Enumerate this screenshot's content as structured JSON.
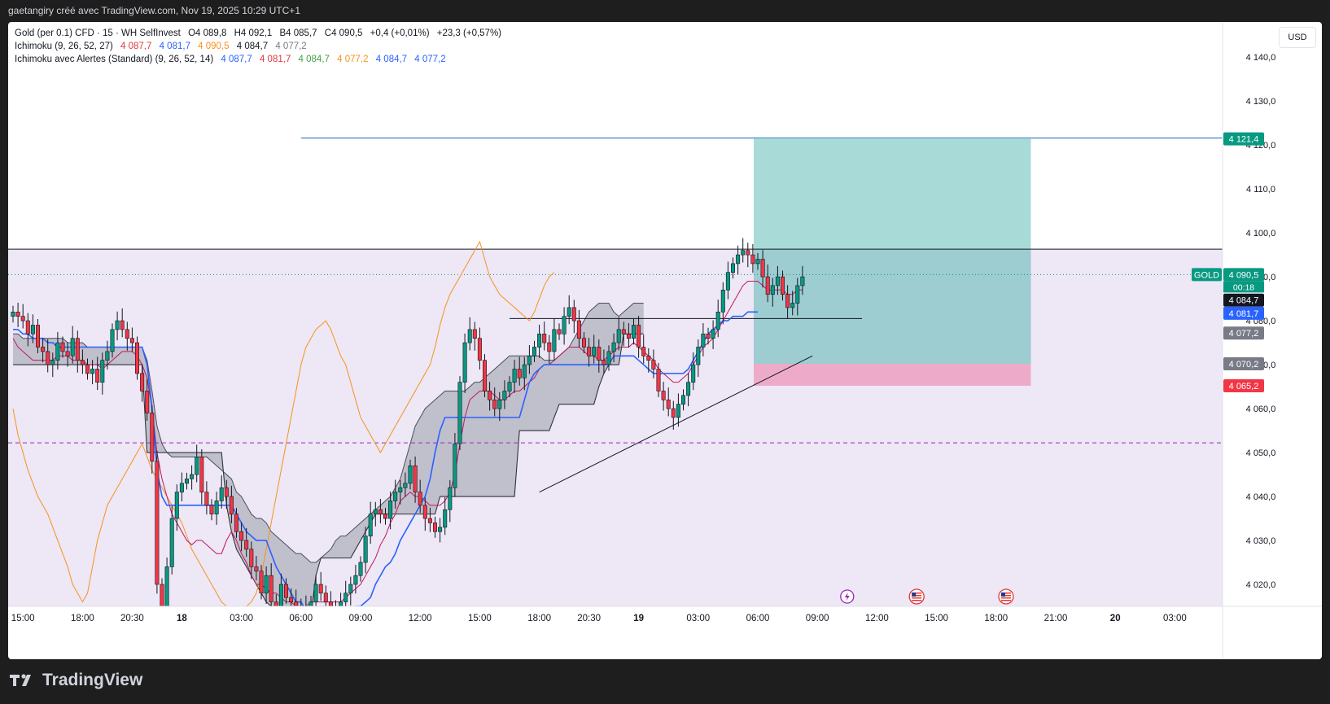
{
  "header": {
    "attribution": "gaetangiry créé avec TradingView.com, Nov 19, 2025 10:29 UTC+1"
  },
  "legend": {
    "symbol": "Gold (per 0.1) CFD · 15 · WH SelfInvest",
    "ohlc": [
      {
        "label": "O",
        "value": "4 089,8"
      },
      {
        "label": "H",
        "value": "4 092,1"
      },
      {
        "label": "B",
        "value": "4 085,7"
      },
      {
        "label": "C",
        "value": "4 090,5"
      }
    ],
    "change": "+0,4 (+0,01%)",
    "change2": "+23,3 (+0,57%)",
    "ichimoku1": {
      "name": "Ichimoku (9, 26, 52, 27)",
      "values": [
        {
          "v": "4 087,7",
          "color": "#e03a3e"
        },
        {
          "v": "4 081,7",
          "color": "#2962ff"
        },
        {
          "v": "4 090,5",
          "color": "#f7931a"
        },
        {
          "v": "4 084,7",
          "color": "#131722"
        },
        {
          "v": "4 077,2",
          "color": "#787b86"
        }
      ]
    },
    "ichimoku2": {
      "name": "Ichimoku avec Alertes (Standard) (9, 26, 52, 14)",
      "values": [
        {
          "v": "4 087,7",
          "color": "#2962ff"
        },
        {
          "v": "4 081,7",
          "color": "#e03a3e"
        },
        {
          "v": "4 084,7",
          "color": "#43a047"
        },
        {
          "v": "4 077,2",
          "color": "#f7931a"
        },
        {
          "v": "4 084,7",
          "color": "#2962ff"
        },
        {
          "v": "4 077,2",
          "color": "#2962ff"
        }
      ]
    }
  },
  "currency": "USD",
  "symbol_tag": "GOLD",
  "countdown": "00:18",
  "brand": "TradingView",
  "colors": {
    "bull": "#089981",
    "bear": "#f23645",
    "tenkan": "#c2185b",
    "kijun": "#2962ff",
    "chikou": "#f7931a",
    "cloud": "#8a8f98",
    "target": "#26a69a",
    "stop": "#f06292",
    "background_shade": "#ede7f6"
  },
  "chart_data": {
    "type": "candlestick",
    "ylim": [
      4015,
      4148
    ],
    "y_ticks": [
      "4 020,0",
      "4 030,0",
      "4 040,0",
      "4 050,0",
      "4 060,0",
      "4 070,0",
      "4 080,0",
      "4 090,0",
      "4 100,0",
      "4 110,0",
      "4 120,0",
      "4 130,0",
      "4 140,0"
    ],
    "y_tick_values": [
      4020,
      4030,
      4040,
      4050,
      4060,
      4070,
      4080,
      4090,
      4100,
      4110,
      4120,
      4130,
      4140
    ],
    "x_ticks": [
      {
        "label": "15:00",
        "bar": 2,
        "bold": false
      },
      {
        "label": "18:00",
        "bar": 14,
        "bold": false
      },
      {
        "label": "20:30",
        "bar": 24,
        "bold": false
      },
      {
        "label": "18",
        "bar": 34,
        "bold": true
      },
      {
        "label": "03:00",
        "bar": 46,
        "bold": false
      },
      {
        "label": "06:00",
        "bar": 58,
        "bold": false
      },
      {
        "label": "09:00",
        "bar": 70,
        "bold": false
      },
      {
        "label": "12:00",
        "bar": 82,
        "bold": false
      },
      {
        "label": "15:00",
        "bar": 94,
        "bold": false
      },
      {
        "label": "18:00",
        "bar": 106,
        "bold": false
      },
      {
        "label": "20:30",
        "bar": 116,
        "bold": false
      },
      {
        "label": "19",
        "bar": 126,
        "bold": true
      },
      {
        "label": "03:00",
        "bar": 138,
        "bold": false
      },
      {
        "label": "06:00",
        "bar": 150,
        "bold": false
      },
      {
        "label": "09:00",
        "bar": 162,
        "bold": false
      },
      {
        "label": "12:00",
        "bar": 174,
        "bold": false
      },
      {
        "label": "15:00",
        "bar": 186,
        "bold": false
      },
      {
        "label": "18:00",
        "bar": 198,
        "bold": false
      },
      {
        "label": "21:00",
        "bar": 210,
        "bold": false
      },
      {
        "label": "20",
        "bar": 222,
        "bold": true
      },
      {
        "label": "03:00",
        "bar": 234,
        "bold": false
      }
    ],
    "closes": [
      4082,
      4081,
      4080,
      4077,
      4079,
      4074,
      4073,
      4070,
      4071,
      4075,
      4073,
      4072,
      4076,
      4071,
      4070,
      4068,
      4069,
      4066,
      4071,
      4073,
      4078,
      4080,
      4078,
      4076,
      4075,
      4068,
      4064,
      4059,
      4048,
      4020,
      4015,
      4024,
      4035,
      4041,
      4043,
      4044,
      4045,
      4049,
      4041,
      4038,
      4036,
      4039,
      4042,
      4040,
      4036,
      4032,
      4030,
      4028,
      4024,
      4023,
      4018,
      4022,
      4016,
      4015,
      4020,
      4017,
      4016,
      4015,
      4014,
      4015,
      4016,
      4020,
      4018,
      4016,
      4014,
      4015,
      4016,
      4018,
      4020,
      4022,
      4025,
      4031,
      4036,
      4037,
      4036,
      4035,
      4039,
      4041,
      4042,
      4043,
      4047,
      4041,
      4038,
      4035,
      4034,
      4032,
      4033,
      4037,
      4042,
      4052,
      4066,
      4075,
      4078,
      4076,
      4071,
      4064,
      4062,
      4060,
      4062,
      4064,
      4066,
      4069,
      4067,
      4070,
      4072,
      4074,
      4077,
      4075,
      4073,
      4078,
      4077,
      4081,
      4083,
      4080,
      4076,
      4074,
      4072,
      4074,
      4071,
      4070,
      4073,
      4075,
      4078,
      4077,
      4076,
      4079,
      4074,
      4072,
      4071,
      4069,
      4064,
      4062,
      4060,
      4058,
      4061,
      4063,
      4066,
      4070,
      4074,
      4077,
      4076,
      4078,
      4082,
      4087,
      4091,
      4093,
      4095,
      4096,
      4095,
      4093,
      4094,
      4090,
      4086,
      4088,
      4090,
      4086,
      4083,
      4084,
      4088,
      4090
    ],
    "opens_offset_note": "",
    "tenkan": [
      4076,
      4074,
      4073,
      4072,
      4071,
      4071,
      4071,
      4071,
      4071,
      4072,
      4072,
      4072,
      4071,
      4071,
      4071,
      4070,
      4070,
      4070,
      4069,
      4070,
      4071,
      4072,
      4073,
      4073,
      4073,
      4072,
      4070,
      4067,
      4060,
      4050,
      4044,
      4040,
      4036,
      4034,
      4032,
      4030,
      4029,
      4030,
      4030,
      4029,
      4028,
      4027,
      4027,
      4030,
      4032,
      4030,
      4027,
      4025,
      4022,
      4020,
      4020,
      4019,
      4018,
      4018,
      4017,
      4016,
      4016,
      4015,
      4015,
      4015,
      4016,
      4016,
      4016,
      4016,
      4016,
      4016,
      4016,
      4017,
      4018,
      4019,
      4020,
      4022,
      4024,
      4026,
      4029,
      4031,
      4034,
      4036,
      4039,
      4040,
      4041,
      4040,
      4040,
      4039,
      4038,
      4038,
      4038,
      4039,
      4041,
      4045,
      4052,
      4058,
      4062,
      4063,
      4064,
      4064,
      4064,
      4063,
      4062,
      4062,
      4063,
      4064,
      4064,
      4065,
      4066,
      4067,
      4069,
      4070,
      4070,
      4071,
      4072,
      4073,
      4074,
      4074,
      4074,
      4073,
      4072,
      4072,
      4071,
      4071,
      4072,
      4073,
      4074,
      4074,
      4074,
      4075,
      4074,
      4073,
      4072,
      4071,
      4069,
      4068,
      4067,
      4066,
      4066,
      4067,
      4068,
      4070,
      4072,
      4074,
      4075,
      4076,
      4078,
      4080,
      4082,
      4084,
      4086,
      4088,
      4089,
      4089,
      4089,
      4088,
      4087,
      4087,
      4087,
      4087,
      4086,
      4086,
      4087,
      4087
    ],
    "kijun": [
      4078,
      4078,
      4077,
      4077,
      4076,
      4076,
      4076,
      4075,
      4075,
      4074,
      4074,
      4074,
      4074,
      4074,
      4074,
      4074,
      4074,
      4074,
      4074,
      4074,
      4074,
      4074,
      4074,
      4074,
      4074,
      4074,
      4074,
      4070,
      4060,
      4046,
      4040,
      4038,
      4038,
      4038,
      4038,
      4038,
      4038,
      4038,
      4038,
      4038,
      4038,
      4038,
      4038,
      4038,
      4038,
      4036,
      4034,
      4032,
      4031,
      4030,
      4030,
      4030,
      4027,
      4024,
      4022,
      4020,
      4018,
      4016,
      4016,
      4014,
      4012,
      4012,
      4012,
      4012,
      4012,
      4013,
      4013,
      4014,
      4014,
      4015,
      4015,
      4016,
      4017,
      4020,
      4022,
      4024,
      4025,
      4027,
      4030,
      4032,
      4034,
      4036,
      4038,
      4040,
      4044,
      4050,
      4055,
      4058,
      4058,
      4058,
      4058,
      4058,
      4058,
      4058,
      4058,
      4058,
      4058,
      4058,
      4058,
      4058,
      4058,
      4058,
      4058,
      4062,
      4066,
      4068,
      4069,
      4070,
      4070,
      4070,
      4070,
      4070,
      4070,
      4070,
      4070,
      4070,
      4070,
      4070,
      4070,
      4070,
      4070,
      4072,
      4072,
      4072,
      4072,
      4072,
      4071,
      4070,
      4069,
      4068,
      4068,
      4068,
      4068,
      4068,
      4068,
      4068,
      4069,
      4071,
      4073,
      4075,
      4077,
      4078,
      4079,
      4080,
      4080,
      4081,
      4081,
      4081,
      4082,
      4082,
      4082
    ],
    "chikou_start": 0,
    "chikou": [
      4060,
      4054,
      4050,
      4046,
      4043,
      4040,
      4038,
      4036,
      4033,
      4030,
      4027,
      4024,
      4020,
      4018,
      4016,
      4018,
      4024,
      4030,
      4034,
      4038,
      4040,
      4042,
      4044,
      4046,
      4048,
      4050,
      4052,
      4049,
      4046,
      4044,
      4042,
      4040,
      4038,
      4036,
      4034,
      4031,
      4028,
      4026,
      4024,
      4022,
      4020,
      4018,
      4016,
      4015,
      4014,
      4013,
      4014,
      4015,
      4016,
      4018,
      4022,
      4028,
      4034,
      4040,
      4046,
      4052,
      4058,
      4064,
      4070,
      4074,
      4076,
      4078,
      4079,
      4080,
      4078,
      4075,
      4072,
      4070,
      4066,
      4062,
      4058,
      4056,
      4054,
      4052,
      4050,
      4052,
      4054,
      4056,
      4058,
      4060,
      4062,
      4064,
      4066,
      4068,
      4070,
      4074,
      4079,
      4083,
      4086,
      4088,
      4090,
      4092,
      4094,
      4096,
      4098,
      4094,
      4090,
      4088,
      4086,
      4085,
      4084,
      4083,
      4082,
      4081,
      4080,
      4082,
      4085,
      4088,
      4090,
      4091
    ],
    "span_a": [
      4077,
      4077,
      4076,
      4076,
      4076,
      4076,
      4076,
      4076,
      4076,
      4076,
      4076,
      4075,
      4075,
      4075,
      4075,
      4074,
      4074,
      4074,
      4074,
      4074,
      4074,
      4074,
      4074,
      4074,
      4074,
      4074,
      4074,
      4071,
      4064,
      4056,
      4052,
      4050,
      4049,
      4049,
      4049,
      4049,
      4049,
      4049,
      4049,
      4049,
      4048,
      4047,
      4046,
      4045,
      4044,
      4041,
      4040,
      4038,
      4036,
      4035,
      4035,
      4034,
      4032,
      4031,
      4030,
      4029,
      4028,
      4027,
      4027,
      4026,
      4025,
      4025,
      4026,
      4027,
      4028,
      4030,
      4031,
      4031,
      4032,
      4033,
      4034,
      4035,
      4036,
      4037,
      4038,
      4039,
      4040,
      4042,
      4044,
      4048,
      4052,
      4056,
      4058,
      4060,
      4061,
      4062,
      4063,
      4064,
      4064,
      4064,
      4064,
      4064,
      4065,
      4066,
      4066,
      4067,
      4068,
      4069,
      4070,
      4071,
      4072,
      4072,
      4072,
      4072,
      4072,
      4072,
      4072,
      4071,
      4071,
      4071,
      4072,
      4073,
      4074,
      4076,
      4078,
      4080,
      4082,
      4083,
      4084,
      4084,
      4084,
      4082,
      4081,
      4082,
      4083,
      4084,
      4084,
      4084
    ],
    "span_b": [
      4070,
      4070,
      4070,
      4070,
      4070,
      4070,
      4070,
      4070,
      4070,
      4070,
      4070,
      4070,
      4070,
      4070,
      4070,
      4070,
      4070,
      4070,
      4070,
      4070,
      4070,
      4070,
      4070,
      4070,
      4070,
      4070,
      4070,
      4050,
      4050,
      4050,
      4050,
      4050,
      4050,
      4050,
      4050,
      4050,
      4050,
      4050,
      4050,
      4050,
      4050,
      4050,
      4050,
      4038,
      4032,
      4028,
      4026,
      4024,
      4022,
      4020,
      4018,
      4016,
      4015,
      4014,
      4013,
      4013,
      4013,
      4013,
      4013,
      4013,
      4013,
      4022,
      4026,
      4026,
      4026,
      4026,
      4026,
      4026,
      4026,
      4028,
      4030,
      4032,
      4034,
      4036,
      4036,
      4036,
      4036,
      4036,
      4036,
      4036,
      4036,
      4036,
      4036,
      4036,
      4036,
      4036,
      4040,
      4040,
      4040,
      4040,
      4040,
      4040,
      4040,
      4040,
      4040,
      4040,
      4040,
      4040,
      4040,
      4040,
      4040,
      4040,
      4055,
      4055,
      4055,
      4055,
      4055,
      4055,
      4055,
      4058,
      4061,
      4061,
      4061,
      4061,
      4061,
      4061,
      4061,
      4061,
      4065,
      4068,
      4070,
      4070,
      4070,
      4077,
      4077,
      4077,
      4077,
      4077
    ],
    "span_offset": 0,
    "position": {
      "entry": 4070.2,
      "target": 4121.4,
      "stop": 4065.2
    },
    "resistance_line": 4096.3,
    "current_price": 4090.5,
    "support_dashed": 4052.2,
    "price_labels": [
      {
        "text": "4 121,4",
        "value": 4121.4,
        "bg": "#089981",
        "fg": "#ffffff"
      },
      {
        "text": "4 090,5",
        "value": 4090.5,
        "bg": "#089981",
        "fg": "#ffffff"
      },
      {
        "text": "4 084,7",
        "value": 4084.7,
        "bg": "#131722",
        "fg": "#ffffff"
      },
      {
        "text": "4 081,7",
        "value": 4081.7,
        "bg": "#2962ff",
        "fg": "#ffffff"
      },
      {
        "text": "4 077,2",
        "value": 4077.2,
        "bg": "#787b86",
        "fg": "#ffffff"
      },
      {
        "text": "4 070,2",
        "value": 4070.2,
        "bg": "#787b86",
        "fg": "#ffffff"
      },
      {
        "text": "4 065,2",
        "value": 4065.2,
        "bg": "#f23645",
        "fg": "#ffffff"
      }
    ],
    "events": [
      {
        "type": "lightning",
        "bar": 168
      },
      {
        "type": "us-flag",
        "bar": 182
      },
      {
        "type": "us-flag",
        "bar": 200
      }
    ]
  }
}
